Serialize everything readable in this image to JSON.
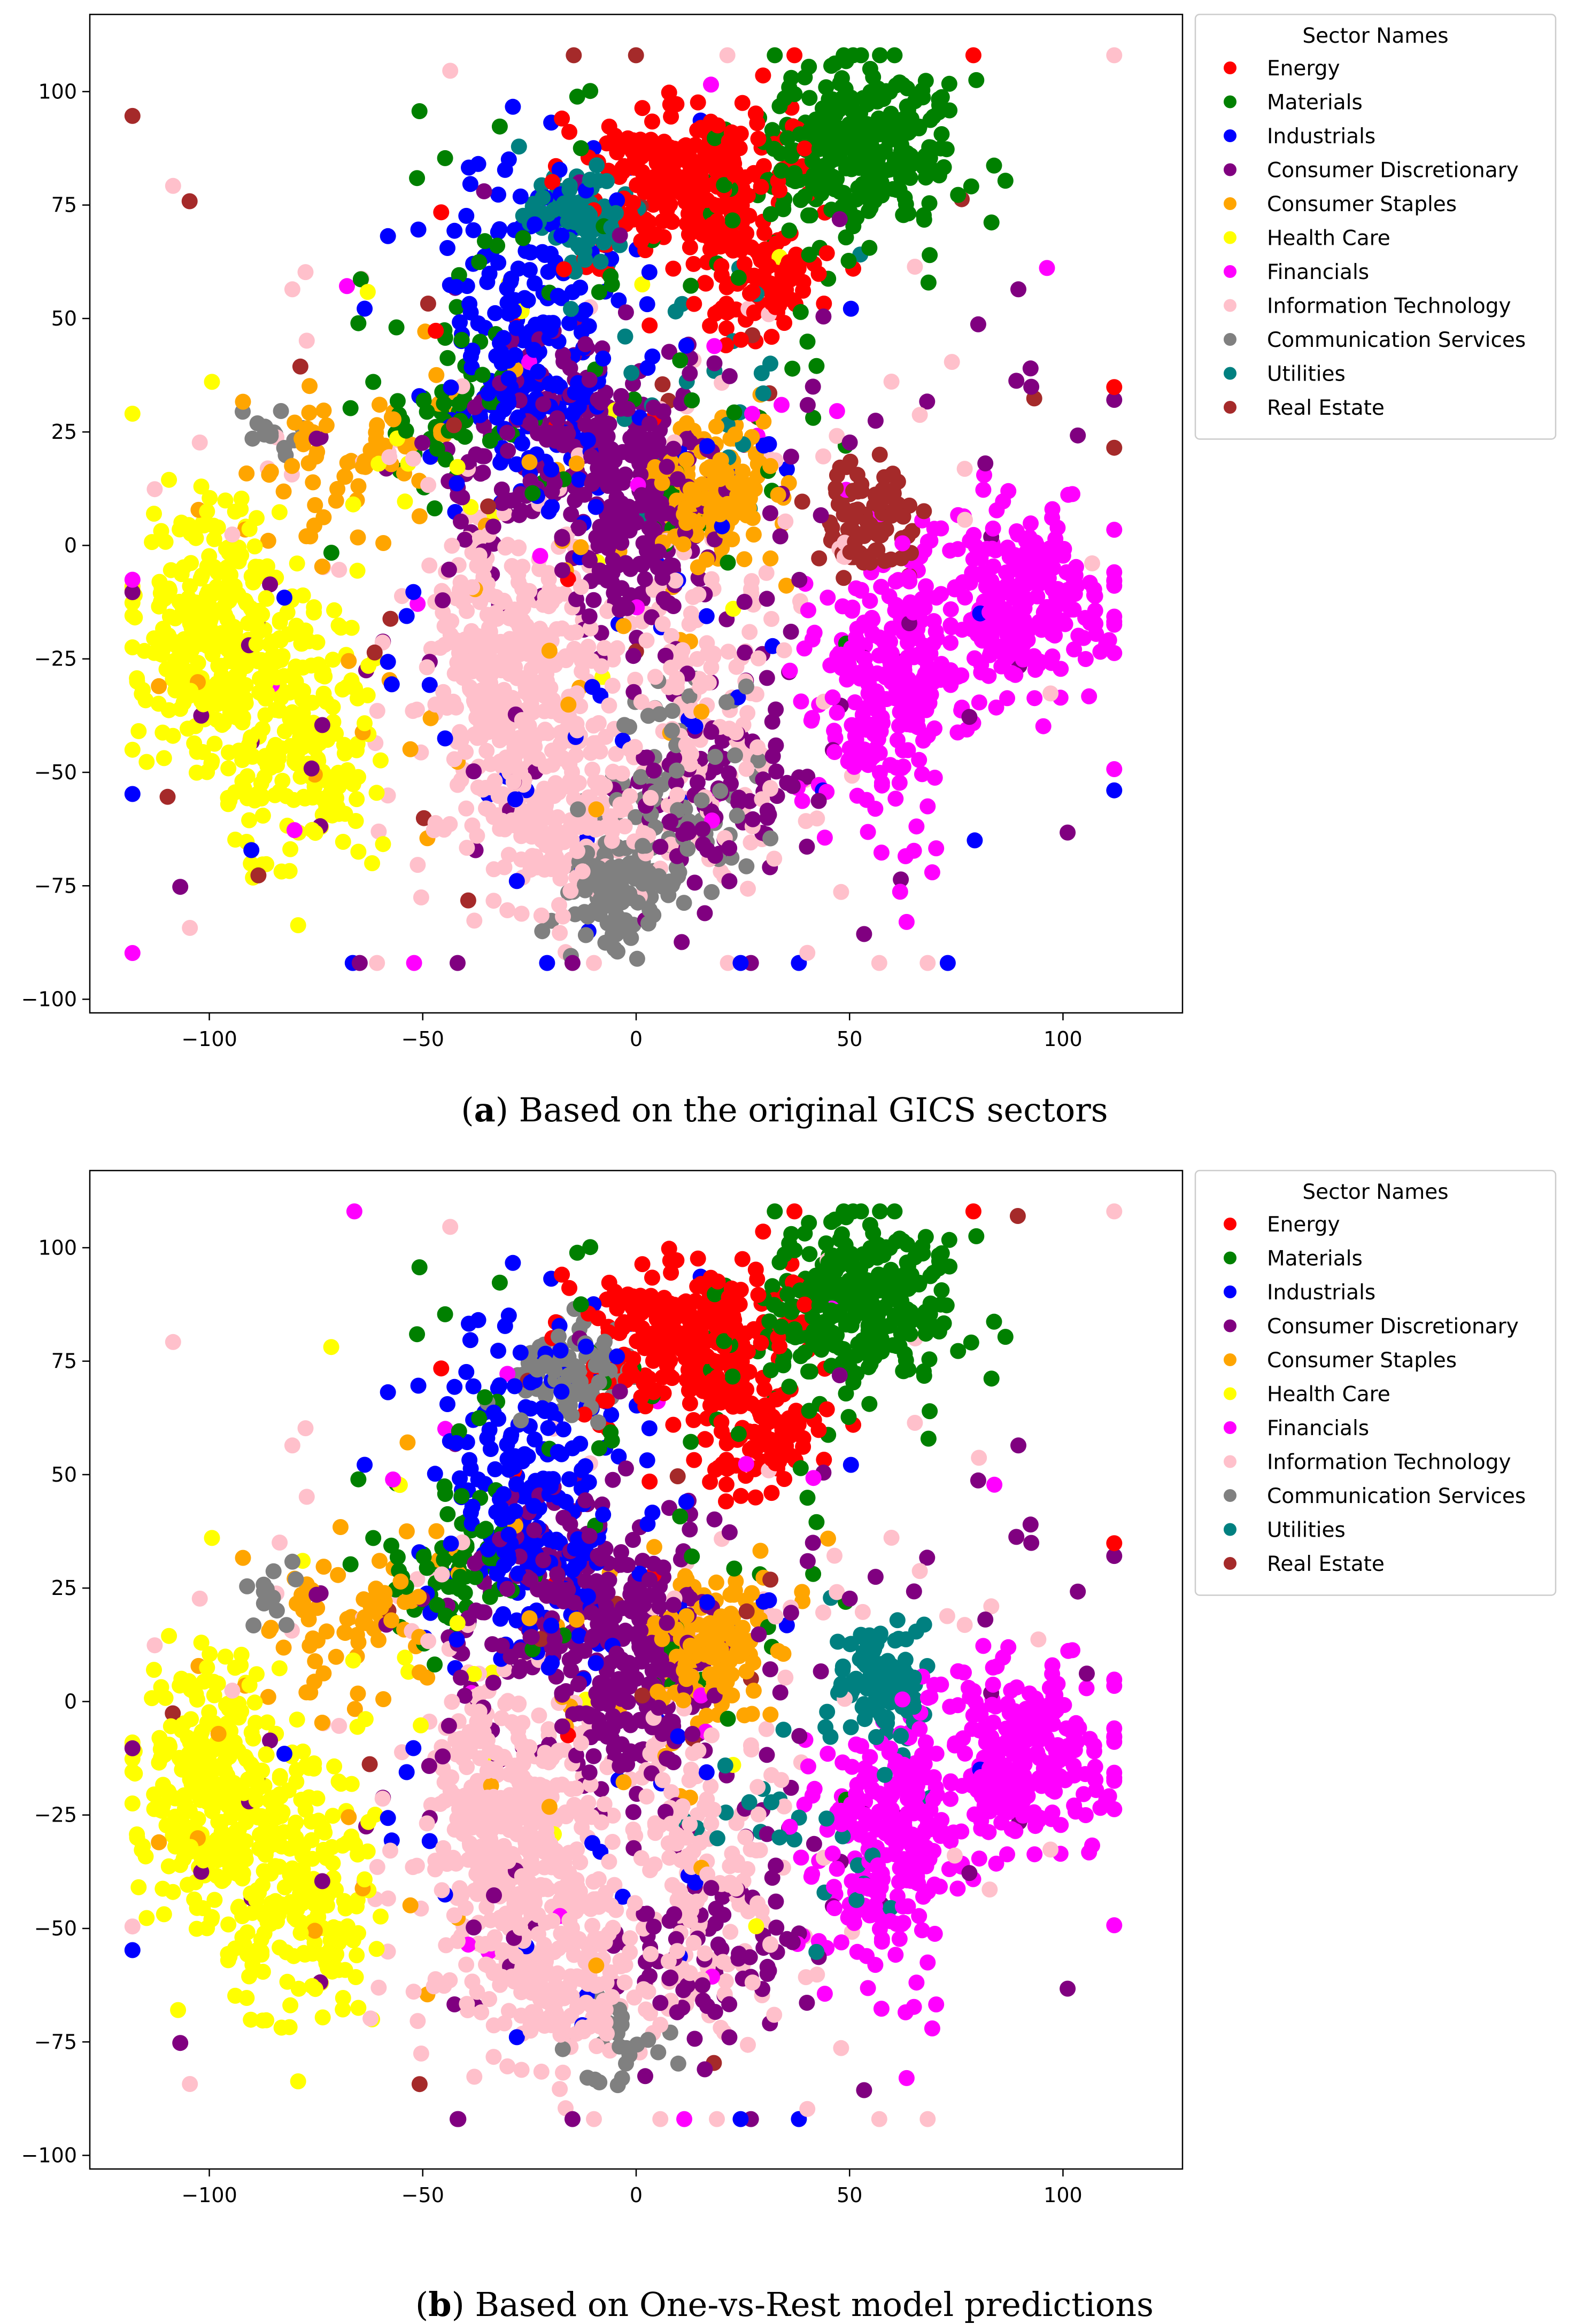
{
  "figure": {
    "captions": [
      {
        "label": "a",
        "text": "Based on the original GICS sectors"
      },
      {
        "label": "b",
        "text": "Based on One-vs-Rest model predictions"
      }
    ]
  },
  "chart_data": [
    {
      "type": "scatter",
      "title": "",
      "xlabel": "",
      "ylabel": "",
      "xlim": [
        -128,
        128
      ],
      "ylim": [
        -103,
        117
      ],
      "x_ticks": [
        -100,
        -50,
        0,
        50,
        100
      ],
      "y_ticks": [
        100,
        75,
        50,
        25,
        0,
        -25,
        -50,
        -75,
        -100
      ],
      "grid": false,
      "legend_title": "Sector Names",
      "legend_position": "outside-upper-right",
      "series": [
        {
          "name": "Energy",
          "color": "#ff0000",
          "clusters": [
            {
              "cx": 12,
              "cy": 78,
              "sx": 11,
              "sy": 9,
              "n": 260
            },
            {
              "cx": 30,
              "cy": 57,
              "sx": 7,
              "sy": 6,
              "n": 90
            },
            {
              "cx": 0,
              "cy": 60,
              "sx": 30,
              "sy": 30,
              "n": 25
            }
          ]
        },
        {
          "name": "Materials",
          "color": "#008000",
          "clusters": [
            {
              "cx": 50,
              "cy": 88,
              "sx": 12,
              "sy": 10,
              "n": 300
            },
            {
              "cx": -45,
              "cy": 30,
              "sx": 7,
              "sy": 7,
              "n": 50
            },
            {
              "cx": 0,
              "cy": 50,
              "sx": 35,
              "sy": 30,
              "n": 70
            }
          ]
        },
        {
          "name": "Industrials",
          "color": "#0000ff",
          "clusters": [
            {
              "cx": -25,
              "cy": 45,
              "sx": 12,
              "sy": 18,
              "n": 230
            },
            {
              "cx": 0,
              "cy": -20,
              "sx": 45,
              "sy": 40,
              "n": 60
            }
          ]
        },
        {
          "name": "Consumer Discretionary",
          "color": "#800080",
          "clusters": [
            {
              "cx": -15,
              "cy": 25,
              "sx": 15,
              "sy": 12,
              "n": 160
            },
            {
              "cx": 0,
              "cy": 5,
              "sx": 8,
              "sy": 14,
              "n": 160
            },
            {
              "cx": 20,
              "cy": -55,
              "sx": 10,
              "sy": 10,
              "n": 90
            },
            {
              "cx": 5,
              "cy": -10,
              "sx": 50,
              "sy": 40,
              "n": 130
            }
          ]
        },
        {
          "name": "Consumer Staples",
          "color": "#ffa500",
          "clusters": [
            {
              "cx": 18,
              "cy": 10,
              "sx": 8,
              "sy": 8,
              "n": 140
            },
            {
              "cx": -72,
              "cy": 18,
              "sx": 10,
              "sy": 9,
              "n": 60
            },
            {
              "cx": -40,
              "cy": 0,
              "sx": 30,
              "sy": 30,
              "n": 40
            }
          ]
        },
        {
          "name": "Health Care",
          "color": "#ffff00",
          "clusters": [
            {
              "cx": -100,
              "cy": -20,
              "sx": 9,
              "sy": 13,
              "n": 270
            },
            {
              "cx": -78,
              "cy": -42,
              "sx": 9,
              "sy": 14,
              "n": 200
            },
            {
              "cx": -55,
              "cy": 10,
              "sx": 40,
              "sy": 35,
              "n": 30
            }
          ]
        },
        {
          "name": "Financials",
          "color": "#ff00ff",
          "clusters": [
            {
              "cx": 90,
              "cy": -12,
              "sx": 11,
              "sy": 11,
              "n": 260
            },
            {
              "cx": 60,
              "cy": -30,
              "sx": 9,
              "sy": 15,
              "n": 240
            },
            {
              "cx": 0,
              "cy": 0,
              "sx": 55,
              "sy": 45,
              "n": 30
            }
          ]
        },
        {
          "name": "Information Technology",
          "color": "#ffc0cb",
          "clusters": [
            {
              "cx": -30,
              "cy": -30,
              "sx": 10,
              "sy": 17,
              "n": 380
            },
            {
              "cx": -18,
              "cy": -60,
              "sx": 10,
              "sy": 10,
              "n": 160
            },
            {
              "cx": 15,
              "cy": -35,
              "sx": 10,
              "sy": 18,
              "n": 140
            },
            {
              "cx": 0,
              "cy": 0,
              "sx": 55,
              "sy": 45,
              "n": 90
            }
          ]
        },
        {
          "name": "Communication Services",
          "color": "#808080",
          "clusters": [
            {
              "cx": -5,
              "cy": -75,
              "sx": 6,
              "sy": 7,
              "n": 110
            },
            {
              "cx": 10,
              "cy": -55,
              "sx": 10,
              "sy": 12,
              "n": 80
            },
            {
              "cx": -85,
              "cy": 24,
              "sx": 4,
              "sy": 4,
              "n": 15
            }
          ]
        },
        {
          "name": "Utilities",
          "color": "#008080",
          "clusters": [
            {
              "cx": -13,
              "cy": 73,
              "sx": 7,
              "sy": 5,
              "n": 100
            },
            {
              "cx": 20,
              "cy": 35,
              "sx": 20,
              "sy": 15,
              "n": 25
            }
          ]
        },
        {
          "name": "Real Estate",
          "color": "#a52a2a",
          "clusters": [
            {
              "cx": 55,
              "cy": 6,
              "sx": 6,
              "sy": 6,
              "n": 90
            },
            {
              "cx": 0,
              "cy": 20,
              "sx": 55,
              "sy": 50,
              "n": 25
            }
          ]
        }
      ]
    },
    {
      "type": "scatter",
      "title": "",
      "xlabel": "",
      "ylabel": "",
      "xlim": [
        -128,
        128
      ],
      "ylim": [
        -103,
        117
      ],
      "x_ticks": [
        -100,
        -50,
        0,
        50,
        100
      ],
      "y_ticks": [
        100,
        75,
        50,
        25,
        0,
        -25,
        -50,
        -75,
        -100
      ],
      "grid": false,
      "legend_title": "Sector Names",
      "legend_position": "outside-upper-right",
      "series": [
        {
          "name": "Energy",
          "color": "#ff0000",
          "clusters": [
            {
              "cx": 12,
              "cy": 78,
              "sx": 11,
              "sy": 9,
              "n": 260
            },
            {
              "cx": 30,
              "cy": 57,
              "sx": 7,
              "sy": 6,
              "n": 90
            },
            {
              "cx": 0,
              "cy": 60,
              "sx": 30,
              "sy": 30,
              "n": 20
            }
          ]
        },
        {
          "name": "Materials",
          "color": "#008000",
          "clusters": [
            {
              "cx": 50,
              "cy": 88,
              "sx": 12,
              "sy": 10,
              "n": 300
            },
            {
              "cx": -45,
              "cy": 30,
              "sx": 7,
              "sy": 7,
              "n": 60
            },
            {
              "cx": 0,
              "cy": 50,
              "sx": 35,
              "sy": 30,
              "n": 60
            }
          ]
        },
        {
          "name": "Industrials",
          "color": "#0000ff",
          "clusters": [
            {
              "cx": -25,
              "cy": 45,
              "sx": 12,
              "sy": 18,
              "n": 240
            },
            {
              "cx": 0,
              "cy": -20,
              "sx": 45,
              "sy": 40,
              "n": 40
            }
          ]
        },
        {
          "name": "Consumer Discretionary",
          "color": "#800080",
          "clusters": [
            {
              "cx": -15,
              "cy": 25,
              "sx": 15,
              "sy": 12,
              "n": 170
            },
            {
              "cx": 0,
              "cy": 5,
              "sx": 8,
              "sy": 14,
              "n": 170
            },
            {
              "cx": 20,
              "cy": -55,
              "sx": 10,
              "sy": 10,
              "n": 70
            },
            {
              "cx": 5,
              "cy": -10,
              "sx": 50,
              "sy": 40,
              "n": 120
            }
          ]
        },
        {
          "name": "Consumer Staples",
          "color": "#ffa500",
          "clusters": [
            {
              "cx": 18,
              "cy": 10,
              "sx": 8,
              "sy": 8,
              "n": 150
            },
            {
              "cx": -72,
              "cy": 18,
              "sx": 10,
              "sy": 9,
              "n": 60
            },
            {
              "cx": -40,
              "cy": 0,
              "sx": 30,
              "sy": 30,
              "n": 40
            }
          ]
        },
        {
          "name": "Health Care",
          "color": "#ffff00",
          "clusters": [
            {
              "cx": -100,
              "cy": -20,
              "sx": 9,
              "sy": 13,
              "n": 270
            },
            {
              "cx": -78,
              "cy": -42,
              "sx": 9,
              "sy": 14,
              "n": 200
            },
            {
              "cx": -55,
              "cy": 10,
              "sx": 40,
              "sy": 35,
              "n": 25
            }
          ]
        },
        {
          "name": "Financials",
          "color": "#ff00ff",
          "clusters": [
            {
              "cx": 90,
              "cy": -12,
              "sx": 11,
              "sy": 11,
              "n": 260
            },
            {
              "cx": 60,
              "cy": -30,
              "sx": 9,
              "sy": 15,
              "n": 240
            },
            {
              "cx": 0,
              "cy": 0,
              "sx": 55,
              "sy": 45,
              "n": 25
            }
          ]
        },
        {
          "name": "Information Technology",
          "color": "#ffc0cb",
          "clusters": [
            {
              "cx": -30,
              "cy": -30,
              "sx": 10,
              "sy": 17,
              "n": 400
            },
            {
              "cx": -18,
              "cy": -60,
              "sx": 10,
              "sy": 10,
              "n": 180
            },
            {
              "cx": 15,
              "cy": -35,
              "sx": 10,
              "sy": 18,
              "n": 160
            },
            {
              "cx": 0,
              "cy": 0,
              "sx": 55,
              "sy": 45,
              "n": 90
            }
          ]
        },
        {
          "name": "Communication Services",
          "color": "#808080",
          "clusters": [
            {
              "cx": -15,
              "cy": 73,
              "sx": 7,
              "sy": 5,
              "n": 90
            },
            {
              "cx": -3,
              "cy": -75,
              "sx": 6,
              "sy": 6,
              "n": 25
            },
            {
              "cx": -85,
              "cy": 24,
              "sx": 4,
              "sy": 4,
              "n": 12
            }
          ]
        },
        {
          "name": "Utilities",
          "color": "#008080",
          "clusters": [
            {
              "cx": 58,
              "cy": 5,
              "sx": 6,
              "sy": 6,
              "n": 110
            },
            {
              "cx": 40,
              "cy": -25,
              "sx": 15,
              "sy": 15,
              "n": 30
            }
          ]
        },
        {
          "name": "Real Estate",
          "color": "#a52a2a",
          "clusters": [
            {
              "cx": 0,
              "cy": 10,
              "sx": 55,
              "sy": 50,
              "n": 15
            }
          ]
        }
      ]
    }
  ]
}
